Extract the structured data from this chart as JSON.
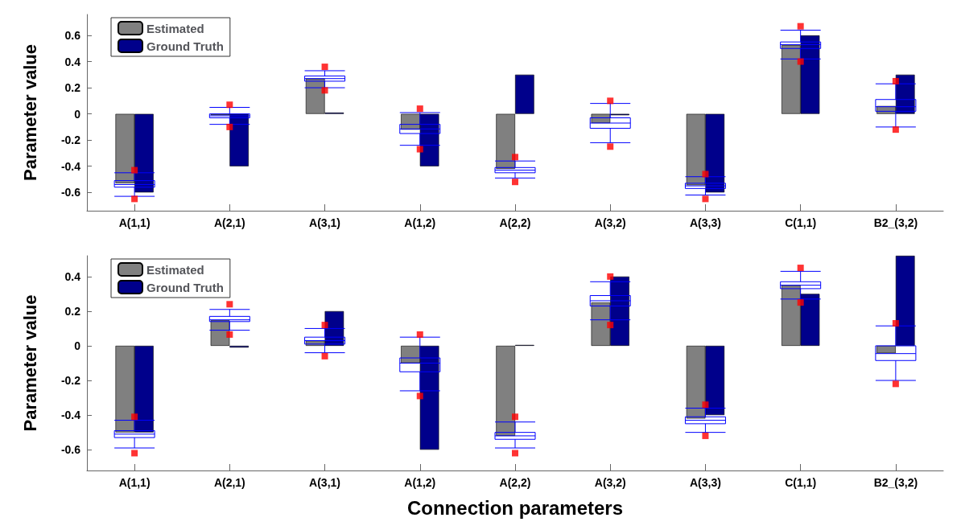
{
  "chart_data": [
    {
      "type": "bar",
      "ylabel": "Parameter value",
      "categories": [
        "A(1,1)",
        "A(2,1)",
        "A(3,1)",
        "A(1,2)",
        "A(2,2)",
        "A(3,2)",
        "A(3,3)",
        "C(1,1)",
        "B2_(3,2)"
      ],
      "ylim": [
        -0.74,
        0.76
      ],
      "yticks": [
        -0.6,
        -0.4,
        -0.2,
        0,
        0.2,
        0.4,
        0.6
      ],
      "grid": false,
      "legend": "top left",
      "series": [
        {
          "name": "Estimated",
          "color": "#808080",
          "values": [
            -0.53,
            -0.01,
            0.27,
            -0.12,
            -0.42,
            -0.07,
            -0.545,
            0.525,
            0.06
          ]
        },
        {
          "name": "Ground Truth",
          "color": "#00008b",
          "values": [
            -0.6,
            -0.4,
            0.01,
            -0.4,
            0.3,
            -0.01,
            -0.6,
            0.6,
            0.3
          ]
        },
        {
          "type": "box",
          "color": "#0000ff",
          "boxes": [
            {
              "low": -0.63,
              "q1": -0.56,
              "median": -0.54,
              "q3": -0.51,
              "high": -0.45,
              "outliers": [
                -0.43,
                -0.65
              ]
            },
            {
              "low": -0.08,
              "q1": -0.03,
              "median": -0.015,
              "q3": 0.0,
              "high": 0.05,
              "outliers": [
                0.07,
                -0.1
              ]
            },
            {
              "low": 0.2,
              "q1": 0.25,
              "median": 0.27,
              "q3": 0.29,
              "high": 0.33,
              "outliers": [
                0.36,
                0.18
              ]
            },
            {
              "low": -0.24,
              "q1": -0.15,
              "median": -0.115,
              "q3": -0.08,
              "high": 0.01,
              "outliers": [
                0.04,
                -0.27
              ]
            },
            {
              "low": -0.49,
              "q1": -0.45,
              "median": -0.43,
              "q3": -0.41,
              "high": -0.36,
              "outliers": [
                -0.33,
                -0.52
              ]
            },
            {
              "low": -0.22,
              "q1": -0.11,
              "median": -0.07,
              "q3": -0.03,
              "high": 0.08,
              "outliers": [
                0.1,
                -0.25
              ]
            },
            {
              "low": -0.62,
              "q1": -0.57,
              "median": -0.55,
              "q3": -0.53,
              "high": -0.48,
              "outliers": [
                -0.46,
                -0.65
              ]
            },
            {
              "low": 0.42,
              "q1": 0.5,
              "median": 0.53,
              "q3": 0.55,
              "high": 0.64,
              "outliers": [
                0.67,
                0.4
              ]
            },
            {
              "low": -0.1,
              "q1": 0.02,
              "median": 0.055,
              "q3": 0.11,
              "high": 0.23,
              "outliers": [
                0.25,
                -0.12
              ]
            }
          ]
        }
      ]
    },
    {
      "type": "bar",
      "ylabel": "Parameter value",
      "xlabel": "Connection parameters",
      "categories": [
        "A(1,1)",
        "A(2,1)",
        "A(3,1)",
        "A(1,2)",
        "A(2,2)",
        "A(3,2)",
        "A(3,3)",
        "C(1,1)",
        "B2_(3,2)"
      ],
      "ylim": [
        -0.72,
        0.52
      ],
      "yticks": [
        -0.6,
        -0.4,
        -0.2,
        0,
        0.2,
        0.4
      ],
      "grid": false,
      "legend": "top left",
      "series": [
        {
          "name": "Estimated",
          "color": "#808080",
          "values": [
            -0.5,
            0.147,
            0.03,
            -0.1,
            -0.52,
            0.25,
            -0.42,
            0.35,
            -0.043
          ]
        },
        {
          "name": "Ground Truth",
          "color": "#00008b",
          "values": [
            -0.5,
            -0.01,
            0.2,
            -0.6,
            0.005,
            0.4,
            -0.4,
            0.3,
            0.52
          ]
        },
        {
          "type": "box",
          "color": "#0000ff",
          "boxes": [
            {
              "low": -0.59,
              "q1": -0.53,
              "median": -0.51,
              "q3": -0.49,
              "high": -0.43,
              "outliers": [
                -0.41,
                -0.62
              ]
            },
            {
              "low": 0.09,
              "q1": 0.14,
              "median": 0.15,
              "q3": 0.17,
              "high": 0.21,
              "outliers": [
                0.24,
                0.065
              ]
            },
            {
              "low": -0.04,
              "q1": 0.01,
              "median": 0.03,
              "q3": 0.05,
              "high": 0.1,
              "outliers": [
                0.12,
                -0.06
              ]
            },
            {
              "low": -0.26,
              "q1": -0.15,
              "median": -0.1,
              "q3": -0.07,
              "high": 0.05,
              "outliers": [
                0.065,
                -0.29
              ]
            },
            {
              "low": -0.59,
              "q1": -0.54,
              "median": -0.52,
              "q3": -0.5,
              "high": -0.44,
              "outliers": [
                -0.41,
                -0.62
              ]
            },
            {
              "low": 0.15,
              "q1": 0.23,
              "median": 0.26,
              "q3": 0.29,
              "high": 0.37,
              "outliers": [
                0.4,
                0.12
              ]
            },
            {
              "low": -0.5,
              "q1": -0.45,
              "median": -0.43,
              "q3": -0.41,
              "high": -0.36,
              "outliers": [
                -0.34,
                -0.52
              ]
            },
            {
              "low": 0.27,
              "q1": 0.33,
              "median": 0.35,
              "q3": 0.37,
              "high": 0.43,
              "outliers": [
                0.45,
                0.25
              ]
            },
            {
              "low": -0.2,
              "q1": -0.085,
              "median": -0.045,
              "q3": 0.0,
              "high": 0.115,
              "outliers": [
                0.13,
                -0.22
              ]
            }
          ]
        }
      ]
    }
  ]
}
